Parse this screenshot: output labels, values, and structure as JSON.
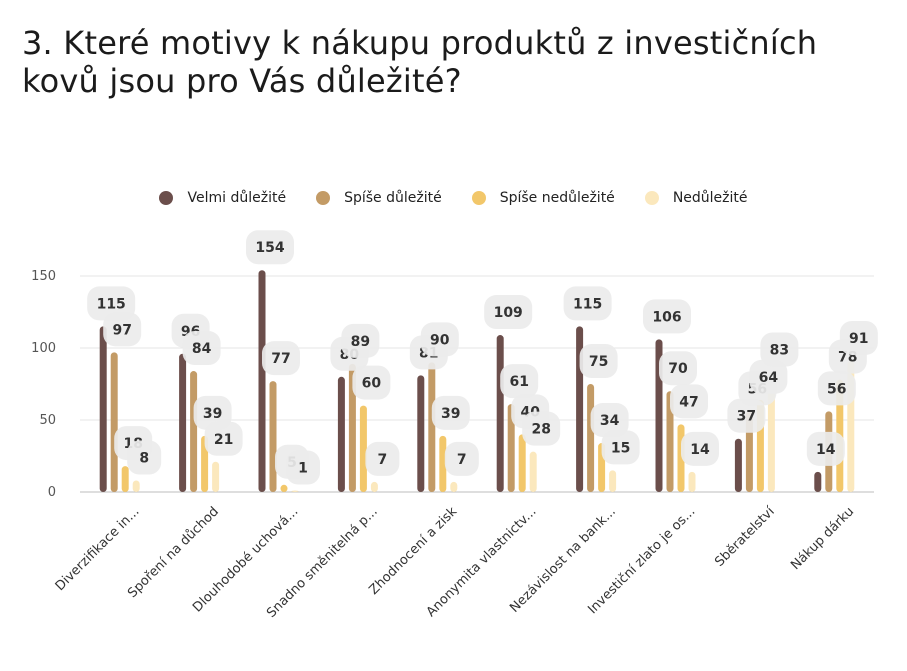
{
  "title": "3. Které motivy k nákupu produktů z investičních kovů jsou pro Vás důležité?",
  "chart_data": {
    "type": "bar",
    "title": "3. Které motivy k nákupu produktů z investičních kovů jsou pro Vás důležité?",
    "categories": [
      "Diverzifikace in...",
      "Spoření na důchod",
      "Dlouhodobé uchová...",
      "Snadno směnitelná p...",
      "Zhodnocení a zisk",
      "Anonymita vlastnictv...",
      "Nezávislost na bank...",
      "Investiční zlato je os...",
      "Sběratelství",
      "Nákup dárku"
    ],
    "series": [
      {
        "name": "Velmi důležité",
        "color": "#6b4e4b",
        "values": [
          115,
          96,
          154,
          80,
          81,
          109,
          115,
          106,
          37,
          14
        ]
      },
      {
        "name": "Spíše důležité",
        "color": "#c39b66",
        "values": [
          97,
          84,
          77,
          89,
          90,
          61,
          75,
          70,
          56,
          56
        ]
      },
      {
        "name": "Spíše nedůležité",
        "color": "#f2c76a",
        "values": [
          18,
          39,
          5,
          60,
          39,
          40,
          34,
          47,
          64,
          78
        ]
      },
      {
        "name": "Nedůležité",
        "color": "#fbe8bd",
        "values": [
          8,
          21,
          1,
          7,
          7,
          28,
          15,
          14,
          83,
          91
        ]
      }
    ],
    "yticks": [
      0,
      50,
      100,
      150
    ],
    "ylim": [
      0,
      160
    ],
    "grid": true,
    "legend": "top-center"
  }
}
